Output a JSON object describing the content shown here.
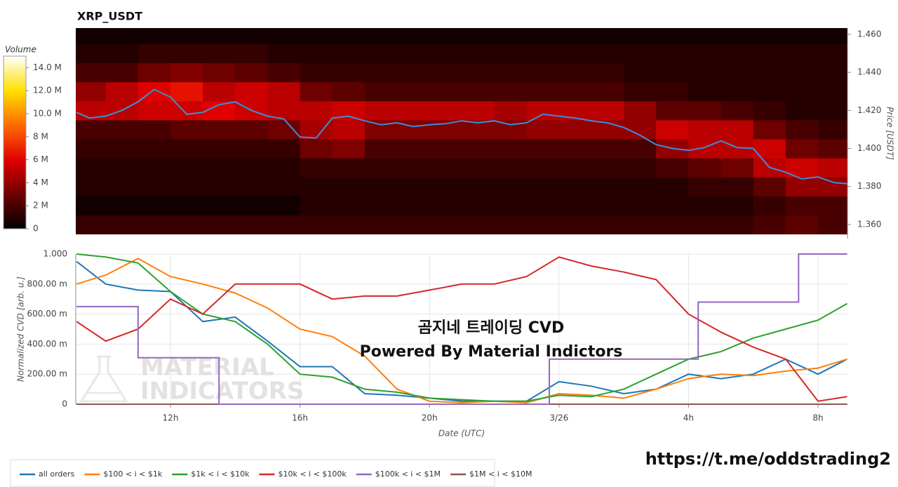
{
  "chart_data": [
    {
      "type": "heatmap",
      "title": "XRP_USDT",
      "ylabel": "Price [USDT]",
      "xlim": [
        9.075,
        32.91
      ],
      "ylim": [
        1.3526,
        1.4633
      ],
      "yticks": [
        {
          "value": 1.36,
          "label": "1.360"
        },
        {
          "value": 1.38,
          "label": "1.380"
        },
        {
          "value": 1.4,
          "label": "1.400"
        },
        {
          "value": 1.42,
          "label": "1.420"
        },
        {
          "value": 1.44,
          "label": "1.440"
        },
        {
          "value": 1.46,
          "label": "1.460"
        }
      ],
      "time_bins": [
        9,
        10,
        11,
        12,
        13,
        14,
        15,
        16,
        17,
        18,
        19,
        20,
        21,
        22,
        23,
        24,
        25,
        26,
        27,
        28,
        29,
        30,
        31,
        32,
        33
      ],
      "price_bins": [
        1.355,
        1.365,
        1.375,
        1.385,
        1.395,
        1.405,
        1.415,
        1.425,
        1.435,
        1.445,
        1.455,
        1.465
      ],
      "volumes": [
        [
          1500000,
          1500000,
          1500000,
          1500000,
          1500000,
          1500000,
          1500000,
          1500000,
          1500000,
          1500000,
          1500000,
          1500000,
          1500000,
          1500000,
          1500000,
          1500000,
          1500000,
          1500000,
          1500000,
          1500000,
          1500000,
          2000000,
          2500000,
          2000000
        ],
        [
          500000,
          500000,
          500000,
          500000,
          500000,
          500000,
          500000,
          1000000,
          1000000,
          1000000,
          1000000,
          1000000,
          1000000,
          1000000,
          1000000,
          1000000,
          1000000,
          1000000,
          1000000,
          1000000,
          1000000,
          1500000,
          2000000,
          2000000
        ],
        [
          1000000,
          1000000,
          1000000,
          1000000,
          1000000,
          1000000,
          1000000,
          1000000,
          1000000,
          1000000,
          1000000,
          1000000,
          1000000,
          1000000,
          1000000,
          1000000,
          1000000,
          1000000,
          1000000,
          1500000,
          1500000,
          2500000,
          4000000,
          4000000
        ],
        [
          1000000,
          1000000,
          1000000,
          1000000,
          1000000,
          1000000,
          1000000,
          1500000,
          1500000,
          1500000,
          1500000,
          1500000,
          1500000,
          1500000,
          1500000,
          1500000,
          1500000,
          1500000,
          2000000,
          2500000,
          3000000,
          5000000,
          5500000,
          5000000
        ],
        [
          1500000,
          1500000,
          1500000,
          1500000,
          1500000,
          1500000,
          1500000,
          3000000,
          3500000,
          2000000,
          2000000,
          2000000,
          2000000,
          2000000,
          2000000,
          2000000,
          2000000,
          2000000,
          4000000,
          5000000,
          5000000,
          5500000,
          3000000,
          2500000
        ],
        [
          2000000,
          2000000,
          2000000,
          2500000,
          2500000,
          2500000,
          3000000,
          4500000,
          5000000,
          3500000,
          3500000,
          3500000,
          3500000,
          3500000,
          4000000,
          4000000,
          4000000,
          4000000,
          5500000,
          5000000,
          5000000,
          3000000,
          2000000,
          1500000
        ],
        [
          5000000,
          5000000,
          5500000,
          5500000,
          6000000,
          5500000,
          5000000,
          5000000,
          5500000,
          5000000,
          5000000,
          5000000,
          5000000,
          4500000,
          5000000,
          5000000,
          5000000,
          4000000,
          2500000,
          2500000,
          2000000,
          1500000,
          1000000,
          1000000
        ],
        [
          4000000,
          5000000,
          6000000,
          6500000,
          5000000,
          5500000,
          5000000,
          3000000,
          2500000,
          2000000,
          2000000,
          2000000,
          2000000,
          2000000,
          2000000,
          2000000,
          2000000,
          1500000,
          1500000,
          1000000,
          1000000,
          1000000,
          1000000,
          1000000
        ],
        [
          2000000,
          2000000,
          3000000,
          3500000,
          3000000,
          2500000,
          2000000,
          1500000,
          1500000,
          1500000,
          1500000,
          1500000,
          1500000,
          1500000,
          1500000,
          1500000,
          1500000,
          1000000,
          1000000,
          1000000,
          1000000,
          1000000,
          1000000,
          1000000
        ],
        [
          1000000,
          1000000,
          1500000,
          1500000,
          1500000,
          1500000,
          1000000,
          1000000,
          1000000,
          1000000,
          1000000,
          1000000,
          1000000,
          1000000,
          1000000,
          1000000,
          1000000,
          1000000,
          1000000,
          1000000,
          1000000,
          1000000,
          1000000,
          1000000
        ],
        [
          500000,
          500000,
          500000,
          500000,
          500000,
          500000,
          500000,
          500000,
          500000,
          500000,
          500000,
          500000,
          500000,
          500000,
          500000,
          500000,
          500000,
          500000,
          500000,
          500000,
          500000,
          500000,
          500000,
          500000
        ]
      ],
      "colorbar": {
        "title": "Volume",
        "lim": [
          0,
          15000000
        ],
        "ticks": [
          0,
          {
            "value": 2000000,
            "label": "2 M"
          },
          {
            "value": 4000000,
            "label": "4 M"
          },
          {
            "value": 6000000,
            "label": "6 M"
          },
          {
            "value": 8000000,
            "label": "8 M"
          },
          {
            "value": 10000000,
            "label": "10.0 M"
          },
          {
            "value": 12000000,
            "label": "12.0 M"
          },
          {
            "value": 14000000,
            "label": "14.0 M"
          }
        ],
        "colors": [
          "#000000",
          "#6e0000",
          "#e00000",
          "#ff6a00",
          "#ffe000",
          "#ffffff"
        ]
      },
      "price_line": {
        "color": "#3a8fd8",
        "x": [
          9.1,
          9.5,
          10,
          10.5,
          11,
          11.5,
          12,
          12.5,
          13,
          13.5,
          14,
          14.5,
          15,
          15.5,
          16,
          16.5,
          17,
          17.5,
          18,
          18.5,
          19,
          19.5,
          20,
          20.5,
          21,
          21.5,
          22,
          22.5,
          23,
          23.5,
          24,
          24.5,
          25,
          25.5,
          26,
          26.5,
          27,
          27.5,
          28,
          28.5,
          29,
          29.5,
          30,
          30.5,
          31,
          31.5,
          32,
          32.5,
          32.9
        ],
        "values": [
          1.419,
          1.416,
          1.417,
          1.42,
          1.4245,
          1.431,
          1.427,
          1.418,
          1.419,
          1.423,
          1.4245,
          1.42,
          1.417,
          1.4155,
          1.406,
          1.4055,
          1.416,
          1.417,
          1.4145,
          1.4125,
          1.4135,
          1.4115,
          1.4125,
          1.413,
          1.4145,
          1.4135,
          1.4145,
          1.4125,
          1.4135,
          1.418,
          1.417,
          1.416,
          1.4145,
          1.4135,
          1.411,
          1.407,
          1.402,
          1.4,
          1.399,
          1.4005,
          1.404,
          1.4005,
          1.4,
          1.39,
          1.3875,
          1.384,
          1.385,
          1.382,
          1.3815
        ]
      }
    },
    {
      "type": "line",
      "xlabel": "Date (UTC)",
      "ylabel": "Normalized CVD [arb. u.]",
      "xlim": [
        9.075,
        32.91
      ],
      "ylim": [
        0,
        1
      ],
      "xticks": [
        {
          "value": 12,
          "label": "12h"
        },
        {
          "value": 16,
          "label": "16h"
        },
        {
          "value": 20,
          "label": "20h"
        },
        {
          "value": 24,
          "label": "3/26"
        },
        {
          "value": 28,
          "label": "4h"
        },
        {
          "value": 32,
          "label": "8h"
        }
      ],
      "yticks": [
        0,
        {
          "value": 0.2,
          "label": "200.00 m"
        },
        {
          "value": 0.4,
          "label": "400.00 m"
        },
        {
          "value": 0.6,
          "label": "600.00 m"
        },
        {
          "value": 0.8,
          "label": "800.00 m"
        },
        {
          "value": 1,
          "label": "1.000"
        }
      ],
      "grid": true,
      "x": [
        9.1,
        10,
        11,
        12,
        13,
        14,
        15,
        16,
        17,
        18,
        19,
        20,
        21,
        22,
        23,
        24,
        25,
        26,
        27,
        28,
        29,
        30,
        31,
        32,
        32.9
      ],
      "series": [
        {
          "name": "$1M < i < $10M",
          "color": "#8c564b",
          "values": [
            0,
            0,
            0,
            0,
            0,
            0,
            0,
            0,
            0,
            0,
            0,
            0,
            0,
            0,
            0,
            0,
            0,
            0,
            0,
            0,
            0,
            0,
            0,
            0,
            0
          ]
        },
        {
          "name": "all orders",
          "color": "#1f77b4",
          "values": [
            0.95,
            0.8,
            0.76,
            0.75,
            0.55,
            0.58,
            0.42,
            0.25,
            0.25,
            0.07,
            0.06,
            0.04,
            0.02,
            0.02,
            0.02,
            0.15,
            0.12,
            0.07,
            0.1,
            0.2,
            0.17,
            0.2,
            0.3,
            0.2,
            0.3
          ]
        },
        {
          "name": "$100 < i < $1k",
          "color": "#ff7f0e",
          "values": [
            0.8,
            0.86,
            0.97,
            0.85,
            0.8,
            0.74,
            0.64,
            0.5,
            0.45,
            0.32,
            0.1,
            0.02,
            0.01,
            0.02,
            0.01,
            0.07,
            0.06,
            0.04,
            0.1,
            0.17,
            0.2,
            0.19,
            0.22,
            0.24,
            0.3
          ]
        },
        {
          "name": "$1k < i < $10k",
          "color": "#2ca02c",
          "values": [
            1,
            0.98,
            0.94,
            0.75,
            0.6,
            0.55,
            0.4,
            0.2,
            0.18,
            0.1,
            0.08,
            0.04,
            0.03,
            0.02,
            0.02,
            0.06,
            0.05,
            0.1,
            0.2,
            0.3,
            0.35,
            0.44,
            0.5,
            0.56,
            0.67
          ]
        },
        {
          "name": "$10k < i < $100k",
          "color": "#d62728",
          "values": [
            0.55,
            0.42,
            0.5,
            0.7,
            0.6,
            0.8,
            0.8,
            0.8,
            0.7,
            0.72,
            0.72,
            0.76,
            0.8,
            0.8,
            0.85,
            0.98,
            0.92,
            0.88,
            0.83,
            0.6,
            0.48,
            0.38,
            0.3,
            0.02,
            0.05
          ]
        },
        {
          "name": "$100k < i < $1M",
          "color": "#9467bd",
          "step": true,
          "x": [
            9.1,
            11,
            13.5,
            23.7,
            28.3,
            31.4,
            32.9
          ],
          "values": [
            0.65,
            0.31,
            0,
            0.3,
            0.68,
            1,
            1
          ]
        }
      ],
      "legend_order": [
        1,
        2,
        3,
        4,
        5,
        0
      ],
      "annotations": [
        "곰지네 트레이딩 CVD",
        "Powered By Material Indictors"
      ],
      "watermark": [
        "MATERIAL",
        "INDICATORS"
      ]
    }
  ],
  "footer": "https://t.me/oddstrading2"
}
